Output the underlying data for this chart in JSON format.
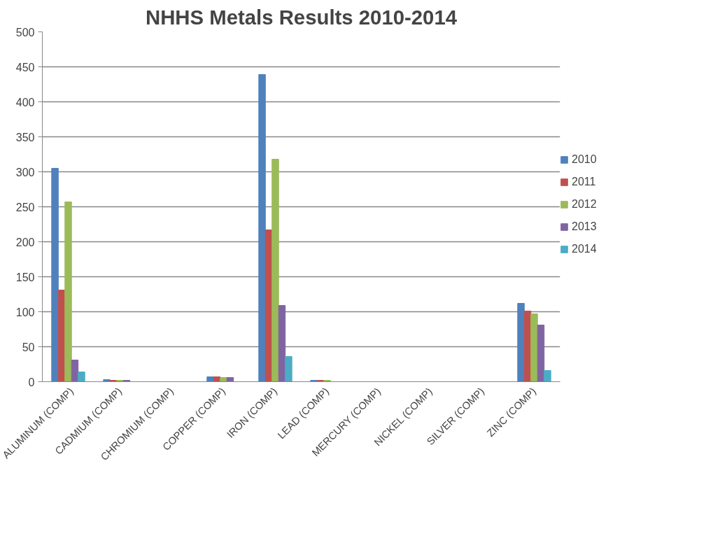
{
  "chart_data": {
    "type": "bar",
    "title": "NHHS Metals Results 2010-2014",
    "categories": [
      "ALUMINUM (COMP)",
      "CADMIUM (COMP)",
      "CHROMIUM (COMP)",
      "COPPER (COMP)",
      "IRON (COMP)",
      "LEAD (COMP)",
      "MERCURY (COMP)",
      "NICKEL (COMP)",
      "SILVER (COMP)",
      "ZINC (COMP)"
    ],
    "series": [
      {
        "name": "2010",
        "color": "#4f81bd",
        "values": [
          305,
          3,
          null,
          7,
          439,
          2,
          null,
          null,
          null,
          112
        ]
      },
      {
        "name": "2011",
        "color": "#c0504d",
        "values": [
          131,
          2,
          null,
          7,
          217,
          2,
          null,
          null,
          null,
          101
        ]
      },
      {
        "name": "2012",
        "color": "#9bbb59",
        "values": [
          257,
          2,
          null,
          6,
          318,
          2,
          null,
          null,
          null,
          97
        ]
      },
      {
        "name": "2013",
        "color": "#8064a2",
        "values": [
          31,
          2,
          null,
          6,
          109,
          null,
          null,
          null,
          null,
          81
        ]
      },
      {
        "name": "2014",
        "color": "#4bacc6",
        "values": [
          14,
          null,
          null,
          null,
          36,
          null,
          null,
          null,
          null,
          16
        ]
      }
    ],
    "ylim": [
      0,
      500
    ],
    "yticks": [
      0,
      50,
      100,
      150,
      200,
      250,
      300,
      350,
      400,
      450,
      500
    ],
    "grid": "y",
    "legend": "right"
  }
}
